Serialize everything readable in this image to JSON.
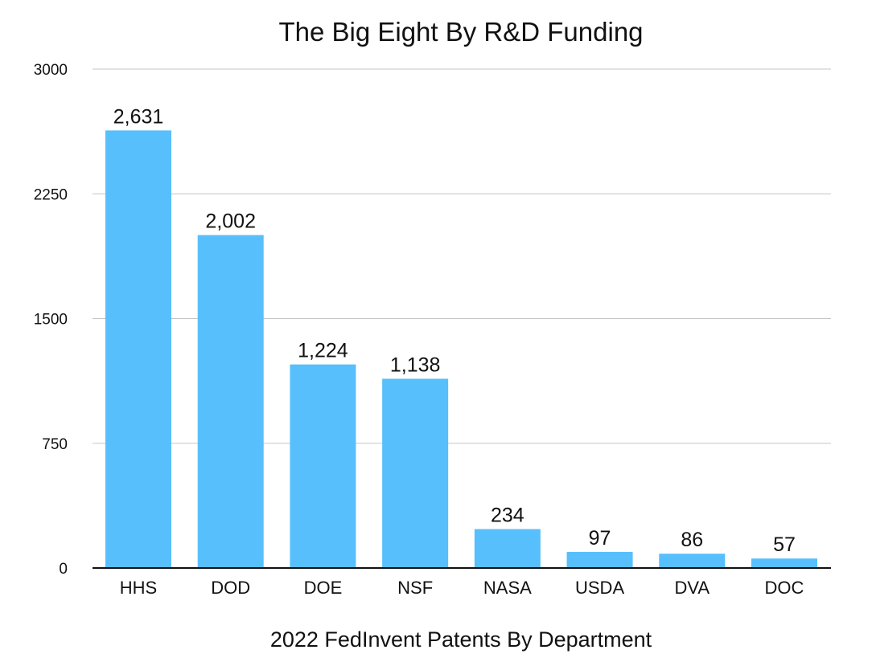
{
  "chart_data": {
    "type": "bar",
    "title": "The Big Eight By R&D Funding",
    "xlabel": "2022 FedInvent Patents By Department",
    "ylabel": "",
    "categories": [
      "HHS",
      "DOD",
      "DOE",
      "NSF",
      "NASA",
      "USDA",
      "DVA",
      "DOC"
    ],
    "values": [
      2631,
      2002,
      1224,
      1138,
      234,
      97,
      86,
      57
    ],
    "data_labels": [
      "2,631",
      "2,002",
      "1,224",
      "1,138",
      "234",
      "97",
      "86",
      "57"
    ],
    "ylim": [
      0,
      3000
    ],
    "yticks": [
      0,
      750,
      1500,
      2250,
      3000
    ],
    "ytick_labels": [
      "0",
      "750",
      "1500",
      "2250",
      "3000"
    ],
    "grid": true,
    "legend": "none",
    "colors": {
      "bar": "#57bffc",
      "grid": "#c6c6c6",
      "axis": "#111111",
      "text": "#111111"
    }
  }
}
